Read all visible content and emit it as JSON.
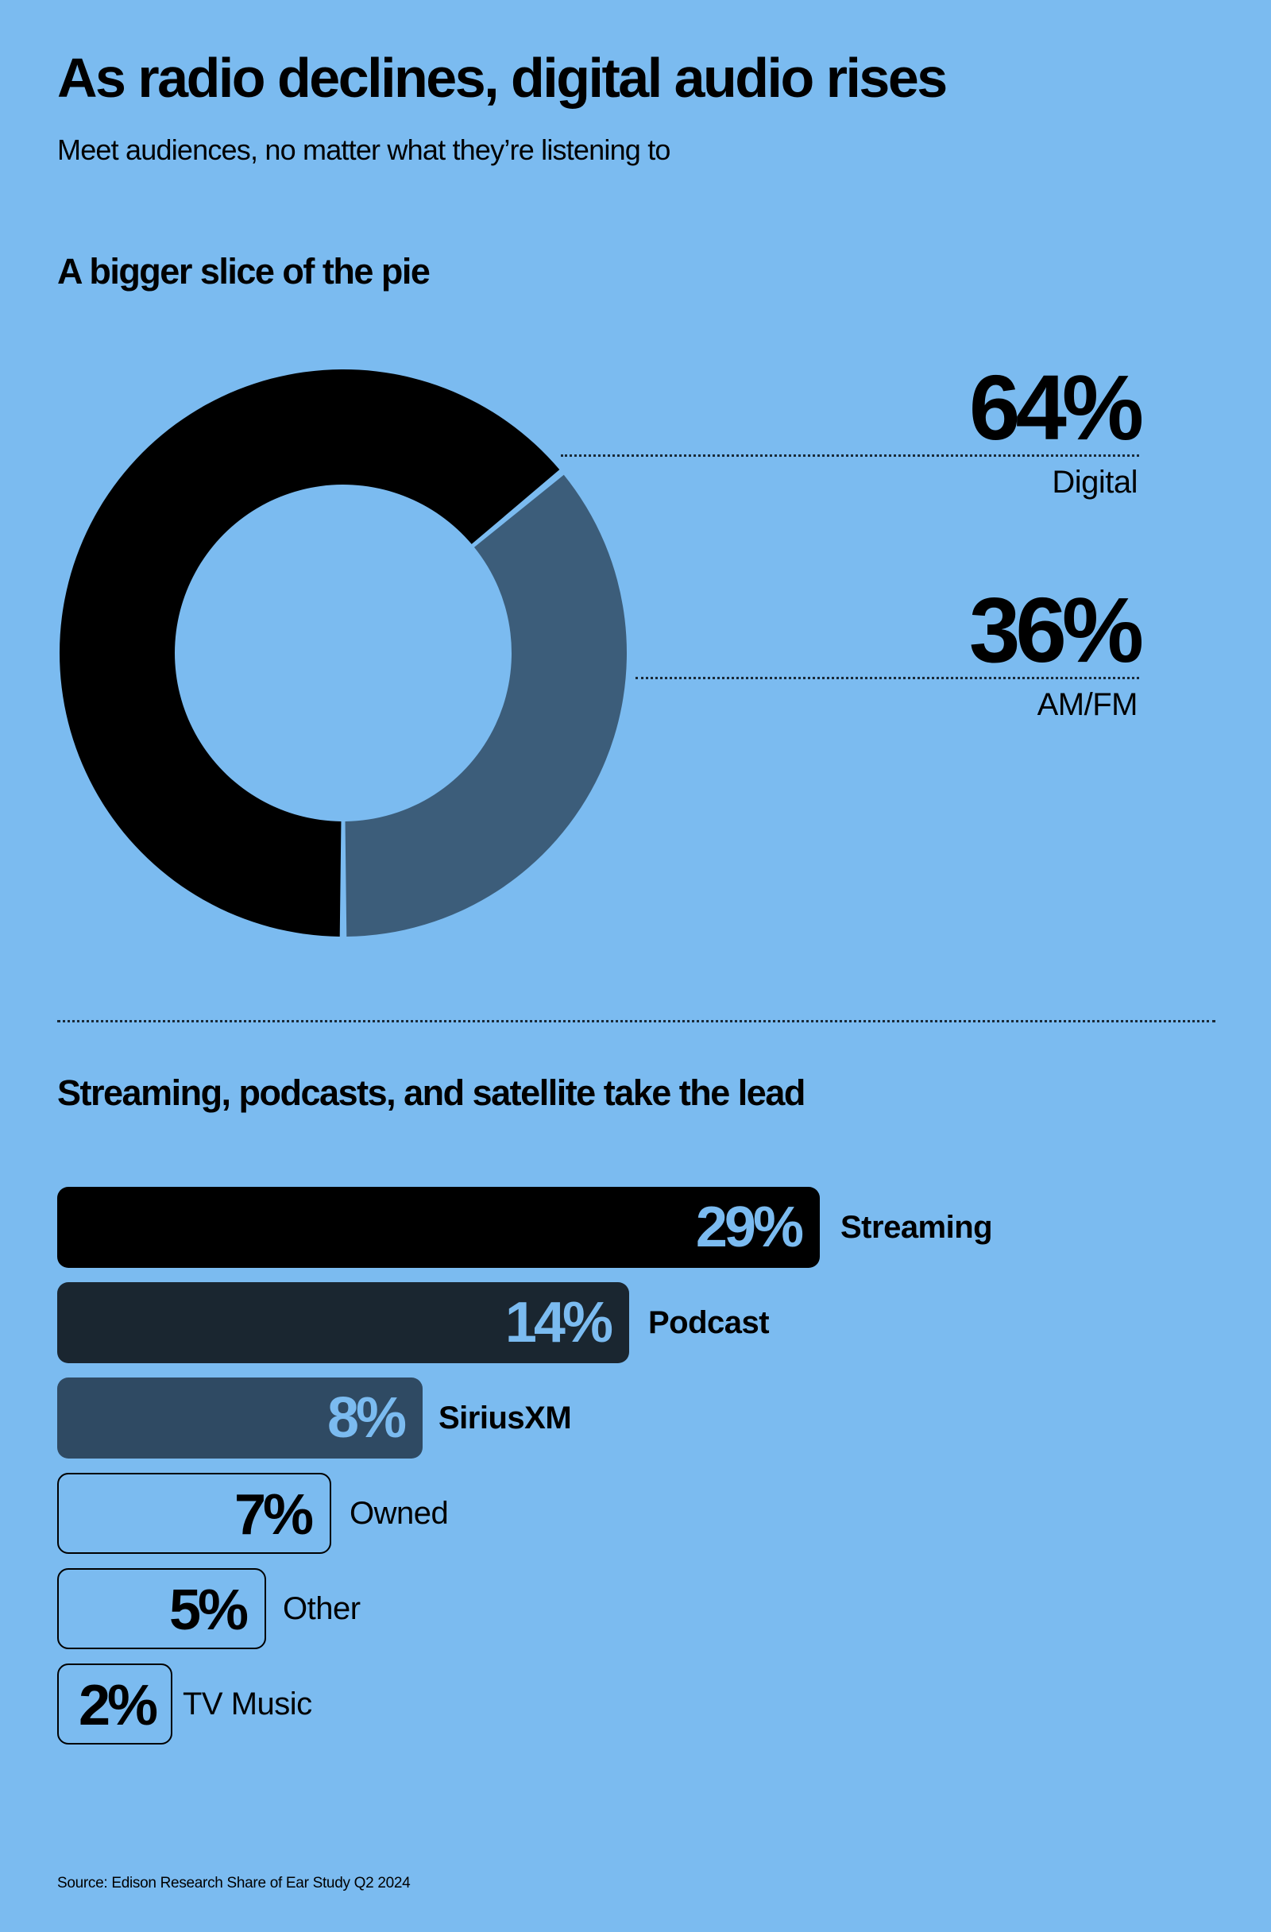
{
  "header": {
    "title": "As radio declines, digital audio rises",
    "subtitle": "Meet audiences, no matter what they’re listening to"
  },
  "donut_section": {
    "heading": "A bigger slice of the pie",
    "items": [
      {
        "value": "64%",
        "label": "Digital",
        "color": "#000000"
      },
      {
        "value": "36%",
        "label": "AM/FM",
        "color": "#3c5d7a"
      }
    ]
  },
  "bar_section": {
    "heading": "Streaming, podcasts, and satellite take the lead",
    "bars": [
      {
        "value": "29%",
        "label": "Streaming"
      },
      {
        "value": "14%",
        "label": "Podcast"
      },
      {
        "value": "8%",
        "label": "SiriusXM"
      },
      {
        "value": "7%",
        "label": "Owned"
      },
      {
        "value": "5%",
        "label": "Other"
      },
      {
        "value": "2%",
        "label": "TV Music"
      }
    ]
  },
  "footer": {
    "source": "Source: Edison Research Share of Ear Study Q2 2024"
  },
  "colors": {
    "background": "#7bbbf0",
    "digital": "#000000",
    "amfm": "#3c5d7a",
    "streaming": "#000000",
    "podcast": "#1a2630",
    "siriusxm": "#2f4a63",
    "value_light": "#7bbbf0"
  },
  "chart_data": [
    {
      "type": "pie",
      "title": "A bigger slice of the pie",
      "categories": [
        "Digital",
        "AM/FM"
      ],
      "values": [
        64,
        36
      ],
      "unit": "%",
      "donut": true
    },
    {
      "type": "bar",
      "orientation": "horizontal",
      "title": "Streaming, podcasts, and satellite take the lead",
      "categories": [
        "Streaming",
        "Podcast",
        "SiriusXM",
        "Owned",
        "Other",
        "TV Music"
      ],
      "values": [
        29,
        14,
        8,
        7,
        5,
        2
      ],
      "unit": "%",
      "xlabel": "",
      "ylabel": ""
    }
  ]
}
